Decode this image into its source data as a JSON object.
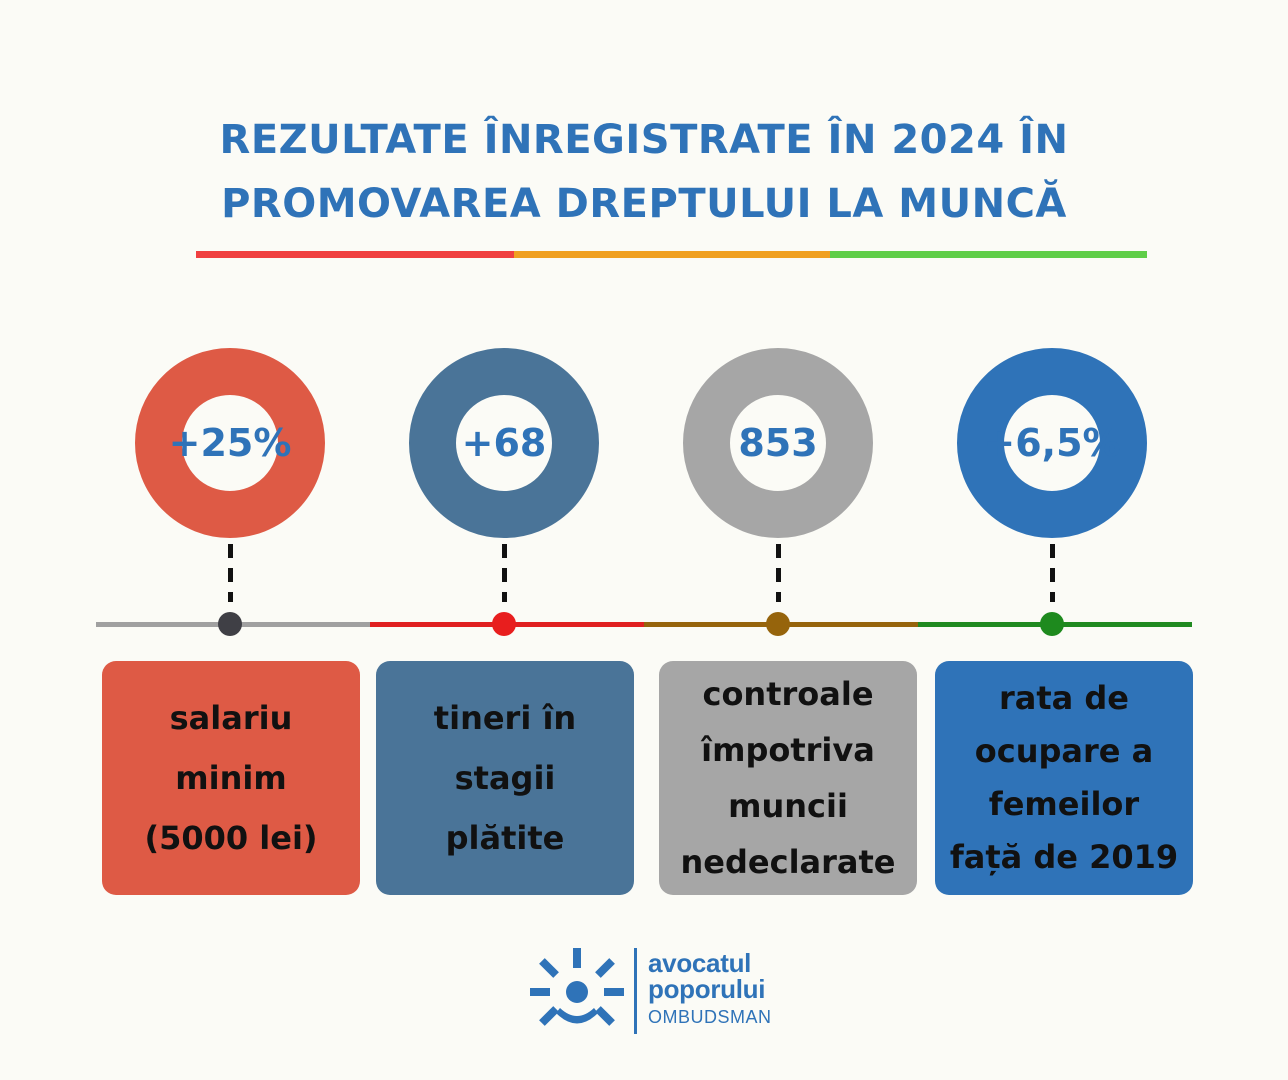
{
  "title": {
    "line1": "REZULTATE ÎNREGISTRATE ÎN 2024 ÎN",
    "line2": "PROMOVAREA DREPTULUI LA MUNCĂ"
  },
  "title_bar_colors": [
    "#f04040",
    "#f0a020",
    "#5fce48"
  ],
  "stats": [
    {
      "value": "+25%",
      "description": "salariu\nminim\n(5000 lei)",
      "ring_color": "#de5a45",
      "card_color": "#de5a45",
      "timeline_color": "#a0a0a0",
      "dot_color": "#3f3f45"
    },
    {
      "value": "+68",
      "description": "tineri în\nstagii\nplătite",
      "ring_color": "#4a7498",
      "card_color": "#4a7498",
      "timeline_color": "#e02020",
      "dot_color": "#e81e1e"
    },
    {
      "value": "853",
      "description": "controale\nîmpotriva\nmuncii\nnedeclarate",
      "ring_color": "#a6a6a6",
      "card_color": "#a6a6a6",
      "timeline_color": "#96640c",
      "dot_color": "#96640c"
    },
    {
      "value": "+6,5%",
      "description": "rata de\nocupare a\nfemeilor\nfață de 2019",
      "ring_color": "#2f73b8",
      "card_color": "#2f73b8",
      "timeline_color": "#208a20",
      "dot_color": "#1e8a1e"
    }
  ],
  "logo": {
    "name_line1": "avocatul",
    "name_line2": "poporului",
    "subtitle": "OMBUDSMAN",
    "color": "#2f73b8"
  }
}
